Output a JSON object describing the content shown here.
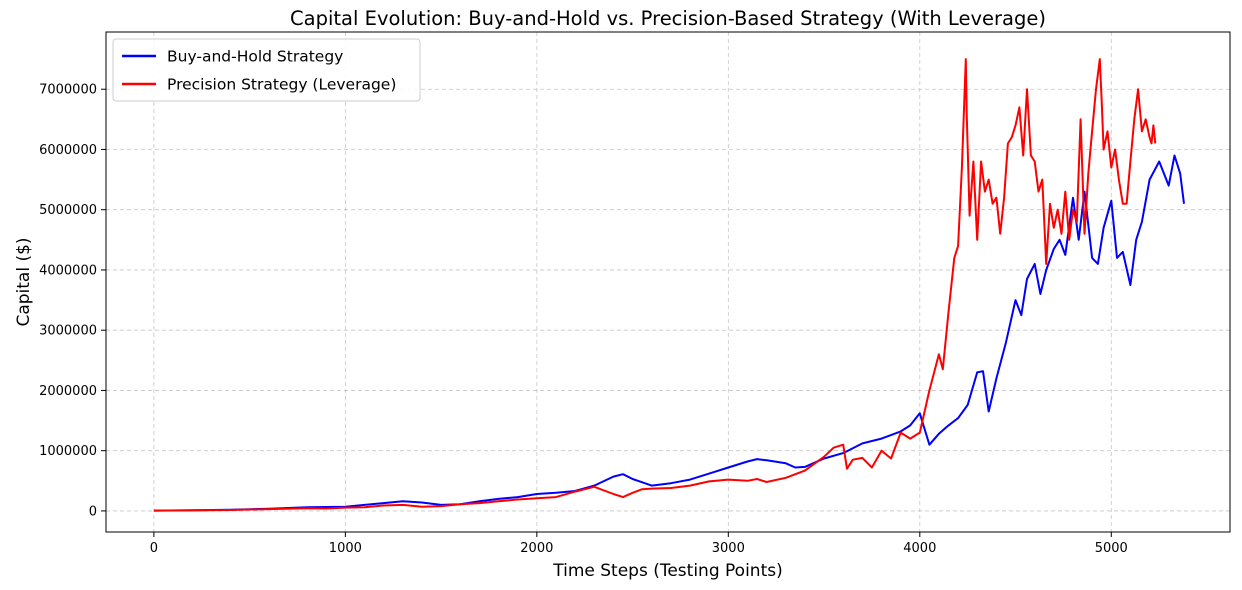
{
  "chart_data": {
    "type": "line",
    "title": "Capital Evolution: Buy-and-Hold vs. Precision-Based Strategy (With Leverage)",
    "xlabel": "Time Steps (Testing Points)",
    "ylabel": "Capital ($)",
    "xlim": [
      -250,
      5620
    ],
    "ylim": [
      -350000,
      7950000
    ],
    "xticks": [
      0,
      1000,
      2000,
      3000,
      4000,
      5000
    ],
    "xtick_labels": [
      "0",
      "1000",
      "2000",
      "3000",
      "4000",
      "5000"
    ],
    "yticks": [
      0,
      1000000,
      2000000,
      3000000,
      4000000,
      5000000,
      6000000,
      7000000
    ],
    "ytick_labels": [
      "0",
      "1000000",
      "2000000",
      "3000000",
      "4000000",
      "5000000",
      "6000000",
      "7000000"
    ],
    "grid": true,
    "legend_position": "top-left",
    "series": [
      {
        "name": "Buy-and-Hold Strategy",
        "color": "#0000ff",
        "x": [
          0,
          200,
          400,
          600,
          800,
          1000,
          1100,
          1200,
          1300,
          1400,
          1500,
          1600,
          1700,
          1800,
          1900,
          2000,
          2100,
          2200,
          2300,
          2400,
          2450,
          2500,
          2600,
          2700,
          2800,
          2900,
          3000,
          3100,
          3150,
          3200,
          3300,
          3350,
          3400,
          3500,
          3600,
          3700,
          3800,
          3900,
          3950,
          4000,
          4050,
          4100,
          4150,
          4200,
          4250,
          4300,
          4330,
          4360,
          4400,
          4450,
          4500,
          4530,
          4560,
          4600,
          4630,
          4660,
          4700,
          4730,
          4760,
          4800,
          4830,
          4860,
          4900,
          4930,
          4960,
          5000,
          5030,
          5060,
          5100,
          5130,
          5160,
          5200,
          5250,
          5300,
          5330,
          5360,
          5380
        ],
        "values": [
          5000,
          10000,
          18000,
          35000,
          60000,
          70000,
          100000,
          130000,
          160000,
          140000,
          100000,
          110000,
          160000,
          200000,
          230000,
          280000,
          300000,
          330000,
          420000,
          570000,
          610000,
          530000,
          420000,
          460000,
          520000,
          620000,
          720000,
          820000,
          860000,
          840000,
          790000,
          720000,
          730000,
          870000,
          960000,
          1120000,
          1200000,
          1320000,
          1420000,
          1620000,
          1100000,
          1280000,
          1420000,
          1540000,
          1760000,
          2300000,
          2320000,
          1650000,
          2200000,
          2800000,
          3500000,
          3250000,
          3850000,
          4100000,
          3600000,
          4000000,
          4350000,
          4500000,
          4250000,
          5200000,
          4500000,
          5300000,
          4200000,
          4100000,
          4700000,
          5150000,
          4200000,
          4300000,
          3750000,
          4500000,
          4800000,
          5500000,
          5800000,
          5400000,
          5900000,
          5600000,
          5100000
        ]
      },
      {
        "name": "Precision Strategy (Leverage)",
        "color": "#ff0000",
        "x": [
          0,
          200,
          400,
          600,
          800,
          900,
          1000,
          1100,
          1200,
          1300,
          1400,
          1500,
          1600,
          1700,
          1800,
          1900,
          2000,
          2100,
          2200,
          2300,
          2400,
          2450,
          2500,
          2550,
          2600,
          2700,
          2800,
          2900,
          3000,
          3100,
          3150,
          3200,
          3300,
          3400,
          3500,
          3550,
          3600,
          3620,
          3650,
          3700,
          3750,
          3800,
          3850,
          3900,
          3950,
          4000,
          4050,
          4100,
          4120,
          4150,
          4180,
          4200,
          4220,
          4240,
          4245,
          4260,
          4280,
          4300,
          4320,
          4340,
          4360,
          4380,
          4400,
          4420,
          4440,
          4460,
          4480,
          4500,
          4520,
          4540,
          4560,
          4580,
          4600,
          4620,
          4640,
          4660,
          4680,
          4700,
          4720,
          4740,
          4760,
          4780,
          4800,
          4820,
          4840,
          4860,
          4880,
          4900,
          4920,
          4940,
          4950,
          4960,
          4980,
          5000,
          5020,
          5040,
          5060,
          5080,
          5100,
          5120,
          5140,
          5160,
          5180,
          5200,
          5210,
          5220,
          5230
        ],
        "values": [
          5000,
          8000,
          15000,
          30000,
          45000,
          40000,
          55000,
          60000,
          90000,
          100000,
          70000,
          80000,
          110000,
          130000,
          160000,
          190000,
          210000,
          230000,
          320000,
          400000,
          280000,
          230000,
          300000,
          360000,
          370000,
          380000,
          420000,
          490000,
          520000,
          500000,
          530000,
          480000,
          550000,
          670000,
          900000,
          1050000,
          1100000,
          700000,
          850000,
          880000,
          720000,
          1000000,
          870000,
          1300000,
          1200000,
          1300000,
          2000000,
          2600000,
          2350000,
          3300000,
          4200000,
          4400000,
          5700000,
          7500000,
          6600000,
          4900000,
          5800000,
          4500000,
          5800000,
          5300000,
          5500000,
          5100000,
          5200000,
          4600000,
          5200000,
          6100000,
          6200000,
          6400000,
          6700000,
          5900000,
          7000000,
          5900000,
          5800000,
          5300000,
          5500000,
          4100000,
          5100000,
          4700000,
          5000000,
          4600000,
          5300000,
          4500000,
          5000000,
          4800000,
          6500000,
          4600000,
          5600000,
          6300000,
          7000000,
          7500000,
          6800000,
          6000000,
          6300000,
          5700000,
          6000000,
          5500000,
          5100000,
          5100000,
          5800000,
          6500000,
          7000000,
          6300000,
          6500000,
          6200000,
          6100000,
          6400000,
          6100000
        ]
      }
    ]
  }
}
